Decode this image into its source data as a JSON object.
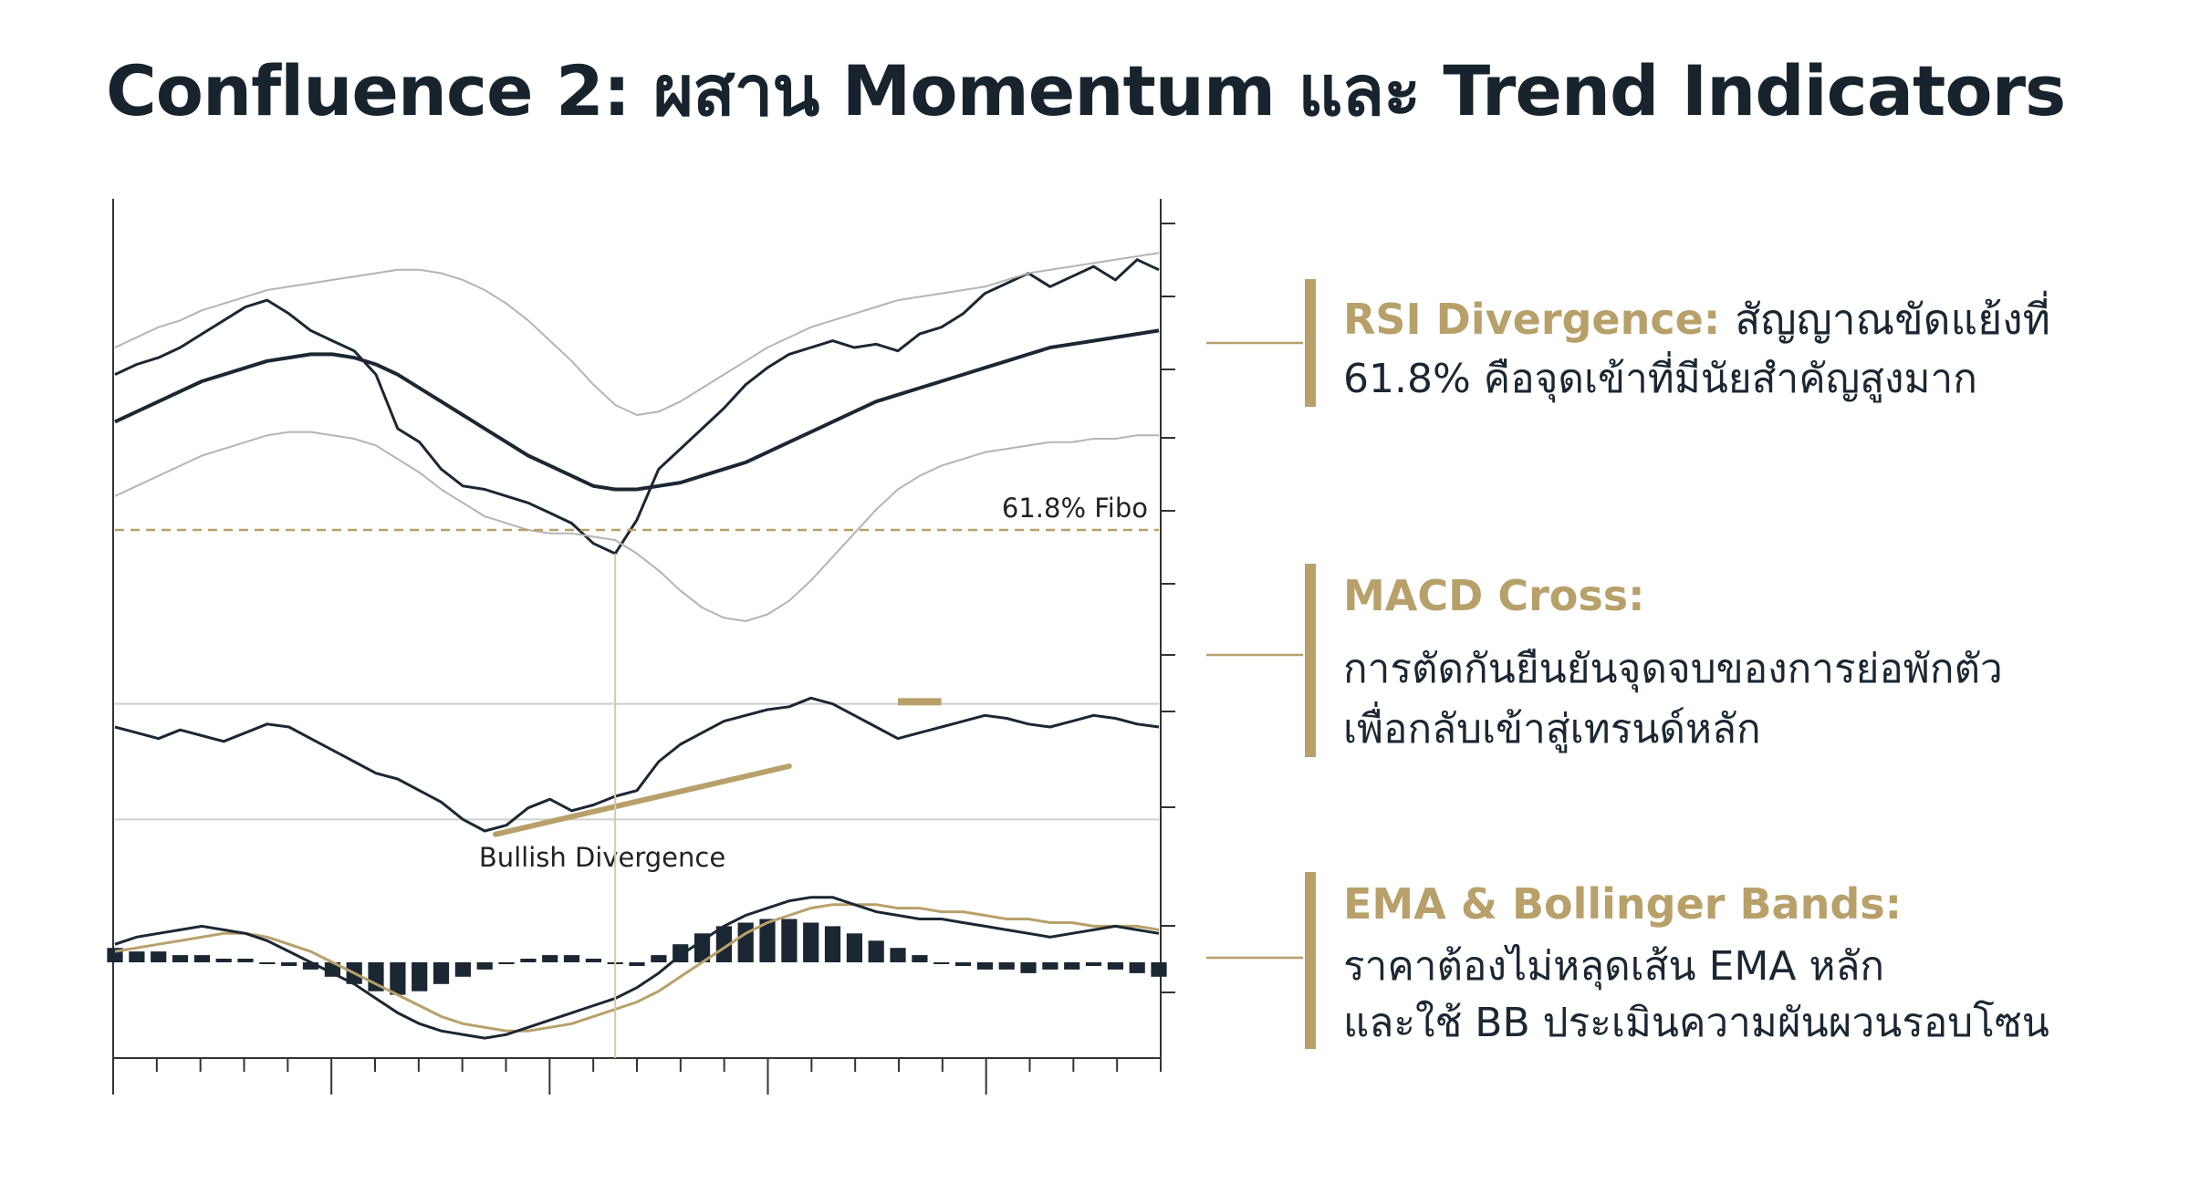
{
  "title": "Confluence 2: ผสาน Momentum และ Trend Indicators",
  "callouts": [
    {
      "heading": "RSI Divergence:",
      "heading_tail": "สัญญาณขัดแย้งที่",
      "lines": [
        "61.8% คือจุดเข้าที่มีนัยสำคัญสูงมาก"
      ]
    },
    {
      "heading": "MACD Cross:",
      "heading_tail": "",
      "lines": [
        "การตัดกันยืนยันจุดจบของการย่อพักตัว",
        "เพื่อกลับเข้าสู่เทรนด์หลัก"
      ]
    },
    {
      "heading": "EMA & Bollinger Bands:",
      "heading_tail": "",
      "lines": [
        "ราคาต้องไม่หลุดเส้น EMA หลัก",
        "และใช้ BB ประเมินความผันผวนรอบโซน"
      ]
    }
  ],
  "chart_data": [
    {
      "type": "line",
      "panel": "price",
      "annotation": "61.8% Fibo",
      "x": [
        0,
        1,
        2,
        3,
        4,
        5,
        6,
        7,
        8,
        9,
        10,
        11,
        12,
        13,
        14,
        15,
        16,
        17,
        18,
        19,
        20,
        21,
        22,
        23,
        24,
        25,
        26,
        27,
        28,
        29,
        30,
        31,
        32,
        33,
        34,
        35,
        36,
        37,
        38,
        39,
        40,
        41,
        42,
        43,
        44,
        45,
        46,
        47,
        48
      ],
      "series": [
        {
          "role": "price",
          "values": [
            58,
            61,
            63,
            66,
            70,
            74,
            78,
            80,
            76,
            71,
            68,
            65,
            58,
            42,
            38,
            30,
            25,
            24,
            22,
            20,
            17,
            14,
            8,
            5,
            15,
            30,
            36,
            42,
            48,
            55,
            60,
            64,
            66,
            68,
            66,
            67,
            65,
            70,
            72,
            76,
            82,
            85,
            88,
            84,
            87,
            90,
            86,
            92,
            89
          ]
        },
        {
          "role": "ema",
          "values": [
            44,
            47,
            50,
            53,
            56,
            58,
            60,
            62,
            63,
            64,
            64,
            63,
            61,
            58,
            54,
            50,
            46,
            42,
            38,
            34,
            31,
            28,
            25,
            24,
            24,
            25,
            26,
            28,
            30,
            32,
            35,
            38,
            41,
            44,
            47,
            50,
            52,
            54,
            56,
            58,
            60,
            62,
            64,
            66,
            67,
            68,
            69,
            70,
            71
          ]
        },
        {
          "role": "bb_upper",
          "values": [
            66,
            69,
            72,
            74,
            77,
            79,
            81,
            83,
            84,
            85,
            86,
            87,
            88,
            89,
            89,
            88,
            86,
            83,
            79,
            74,
            68,
            62,
            55,
            49,
            46,
            47,
            50,
            54,
            58,
            62,
            66,
            69,
            72,
            74,
            76,
            78,
            80,
            81,
            82,
            83,
            84,
            86,
            88,
            89,
            90,
            91,
            92,
            93,
            94
          ]
        },
        {
          "role": "bb_lower",
          "values": [
            22,
            25,
            28,
            31,
            34,
            36,
            38,
            40,
            41,
            41,
            40,
            39,
            37,
            33,
            29,
            24,
            20,
            16,
            14,
            12,
            11,
            11,
            10,
            9,
            5,
            0,
            -6,
            -11,
            -14,
            -15,
            -13,
            -9,
            -3,
            4,
            11,
            18,
            24,
            28,
            31,
            33,
            35,
            36,
            37,
            38,
            38,
            39,
            39,
            40,
            40
          ]
        }
      ],
      "fibo_level": 12,
      "ylim": [
        -25,
        110
      ]
    },
    {
      "type": "line",
      "panel": "rsi",
      "annotation": "Bullish Divergence",
      "x": [
        0,
        1,
        2,
        3,
        4,
        5,
        6,
        7,
        8,
        9,
        10,
        11,
        12,
        13,
        14,
        15,
        16,
        17,
        18,
        19,
        20,
        21,
        22,
        23,
        24,
        25,
        26,
        27,
        28,
        29,
        30,
        31,
        32,
        33,
        34,
        35,
        36,
        37,
        38,
        39,
        40,
        41,
        42,
        43,
        44,
        45,
        46,
        47,
        48
      ],
      "values": [
        62,
        60,
        58,
        61,
        59,
        57,
        60,
        63,
        62,
        58,
        54,
        50,
        46,
        44,
        40,
        36,
        30,
        26,
        28,
        34,
        37,
        33,
        35,
        38,
        40,
        50,
        56,
        60,
        64,
        66,
        68,
        69,
        72,
        70,
        66,
        62,
        58,
        60,
        62,
        64,
        66,
        65,
        63,
        62,
        64,
        66,
        65,
        63,
        62
      ],
      "divergence_line": {
        "from_x": 18,
        "to_x": 28
      },
      "ylim": [
        20,
        80
      ]
    },
    {
      "type": "bar",
      "panel": "macd",
      "x": [
        0,
        1,
        2,
        3,
        4,
        5,
        6,
        7,
        8,
        9,
        10,
        11,
        12,
        13,
        14,
        15,
        16,
        17,
        18,
        19,
        20,
        21,
        22,
        23,
        24,
        25,
        26,
        27,
        28,
        29,
        30,
        31,
        32,
        33,
        34,
        35,
        36,
        37,
        38,
        39,
        40,
        41,
        42,
        43,
        44,
        45,
        46,
        47,
        48
      ],
      "series": [
        {
          "role": "histogram",
          "values": [
            4,
            3,
            3,
            2,
            2,
            1,
            1,
            0,
            -1,
            -2,
            -4,
            -6,
            -8,
            -9,
            -8,
            -6,
            -4,
            -2,
            0,
            1,
            2,
            2,
            1,
            0,
            -1,
            2,
            5,
            8,
            10,
            11,
            12,
            12,
            11,
            10,
            8,
            6,
            4,
            2,
            0,
            -1,
            -2,
            -2,
            -3,
            -2,
            -2,
            -1,
            -2,
            -3,
            -4
          ]
        },
        {
          "role": "macd",
          "values": [
            5,
            7,
            8,
            9,
            10,
            9,
            8,
            6,
            3,
            0,
            -3,
            -6,
            -10,
            -14,
            -17,
            -19,
            -20,
            -21,
            -20,
            -18,
            -16,
            -14,
            -12,
            -10,
            -7,
            -3,
            2,
            6,
            10,
            13,
            15,
            17,
            18,
            18,
            16,
            14,
            13,
            12,
            12,
            11,
            10,
            9,
            8,
            7,
            8,
            9,
            10,
            9,
            8
          ]
        },
        {
          "role": "signal",
          "values": [
            3,
            4,
            5,
            6,
            7,
            8,
            8,
            7,
            5,
            3,
            0,
            -3,
            -6,
            -9,
            -12,
            -15,
            -17,
            -18,
            -19,
            -19,
            -18,
            -17,
            -15,
            -13,
            -11,
            -8,
            -4,
            0,
            4,
            8,
            11,
            13,
            15,
            16,
            16,
            16,
            15,
            15,
            14,
            14,
            13,
            12,
            12,
            11,
            11,
            10,
            10,
            10,
            9
          ]
        }
      ],
      "ylim": [
        -24,
        24
      ]
    }
  ],
  "colors": {
    "gold": "#b8a06a",
    "navy": "#1b2733",
    "band": "#b4b4b4"
  }
}
